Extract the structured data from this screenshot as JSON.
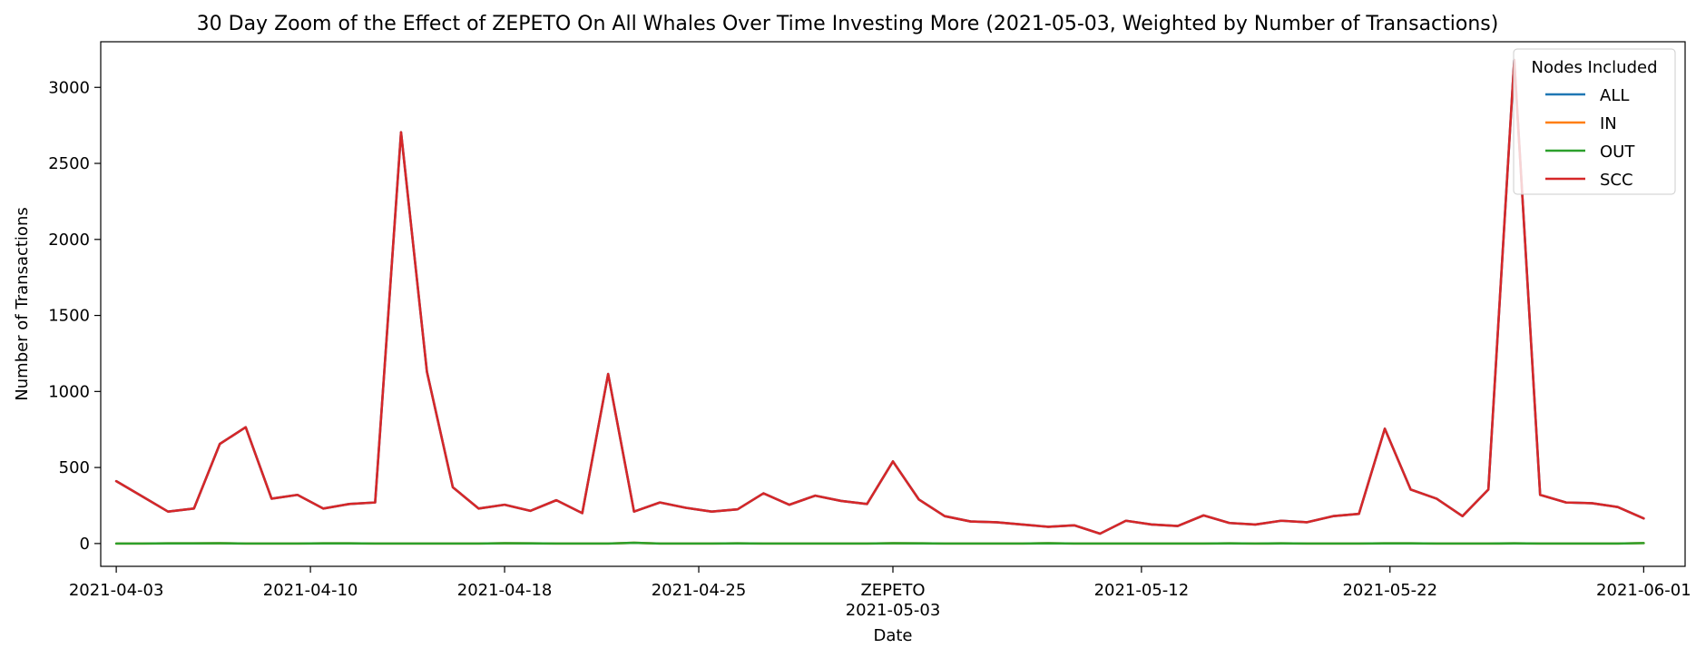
{
  "chart_data": {
    "type": "line",
    "title": "30 Day Zoom of the Effect of ZEPETO On All Whales Over Time Investing More (2021-05-03, Weighted by Number of Transactions)",
    "xlabel": "Date",
    "ylabel": "Number of Transactions",
    "ylim": [
      -150,
      3300
    ],
    "yticks": [
      0,
      500,
      1000,
      1500,
      2000,
      2500,
      3000
    ],
    "x_count": 60,
    "xlim": [
      -0.6,
      60.6
    ],
    "xticks": [
      {
        "index": 0,
        "label": "2021-04-03"
      },
      {
        "index": 7.5,
        "label": "2021-04-10"
      },
      {
        "index": 15,
        "label": "2021-04-18"
      },
      {
        "index": 22.5,
        "label": "2021-04-25"
      },
      {
        "index": 30,
        "label": "2021-05-03",
        "annotation": "ZEPETO"
      },
      {
        "index": 39.6,
        "label": "2021-05-12"
      },
      {
        "index": 49.2,
        "label": "2021-05-22"
      },
      {
        "index": 59,
        "label": "2021-06-01"
      }
    ],
    "legend": {
      "title": "Nodes Included",
      "position": "top-right"
    },
    "series": [
      {
        "name": "ALL",
        "color": "#1f77b4",
        "values": [
          410,
          310,
          210,
          230,
          655,
          765,
          295,
          320,
          230,
          260,
          270,
          2705,
          1130,
          370,
          230,
          255,
          215,
          285,
          200,
          1115,
          210,
          270,
          235,
          210,
          225,
          330,
          255,
          315,
          280,
          260,
          540,
          290,
          180,
          145,
          140,
          125,
          110,
          120,
          65,
          150,
          125,
          115,
          185,
          135,
          125,
          150,
          140,
          180,
          195,
          755,
          355,
          295,
          180,
          355,
          3180,
          320,
          270,
          265,
          240,
          165
        ]
      },
      {
        "name": "IN",
        "color": "#ff7f0e",
        "values": [
          0,
          0,
          1,
          1,
          2,
          0,
          0,
          0,
          1,
          1,
          0,
          0,
          0,
          0,
          0,
          2,
          1,
          0,
          0,
          0,
          5,
          0,
          0,
          0,
          1,
          0,
          0,
          0,
          0,
          0,
          2,
          1,
          0,
          0,
          0,
          0,
          2,
          0,
          0,
          0,
          0,
          0,
          0,
          1,
          0,
          1,
          0,
          0,
          0,
          1,
          1,
          0,
          0,
          0,
          1,
          0,
          0,
          0,
          0,
          3
        ]
      },
      {
        "name": "OUT",
        "color": "#2ca02c",
        "values": [
          0,
          0,
          1,
          1,
          2,
          0,
          0,
          0,
          1,
          1,
          0,
          0,
          0,
          0,
          0,
          2,
          1,
          0,
          0,
          0,
          5,
          0,
          0,
          0,
          1,
          0,
          0,
          0,
          0,
          0,
          2,
          1,
          0,
          0,
          0,
          0,
          2,
          0,
          0,
          0,
          0,
          0,
          0,
          1,
          0,
          1,
          0,
          0,
          0,
          1,
          1,
          0,
          0,
          0,
          1,
          0,
          0,
          0,
          0,
          3
        ]
      },
      {
        "name": "SCC",
        "color": "#d62728",
        "values": [
          410,
          310,
          210,
          230,
          655,
          765,
          295,
          320,
          230,
          260,
          270,
          2705,
          1130,
          370,
          230,
          255,
          215,
          285,
          200,
          1115,
          210,
          270,
          235,
          210,
          225,
          330,
          255,
          315,
          280,
          260,
          540,
          290,
          180,
          145,
          140,
          125,
          110,
          120,
          65,
          150,
          125,
          115,
          185,
          135,
          125,
          150,
          140,
          180,
          195,
          755,
          355,
          295,
          180,
          355,
          3180,
          320,
          270,
          265,
          240,
          165
        ]
      }
    ]
  }
}
